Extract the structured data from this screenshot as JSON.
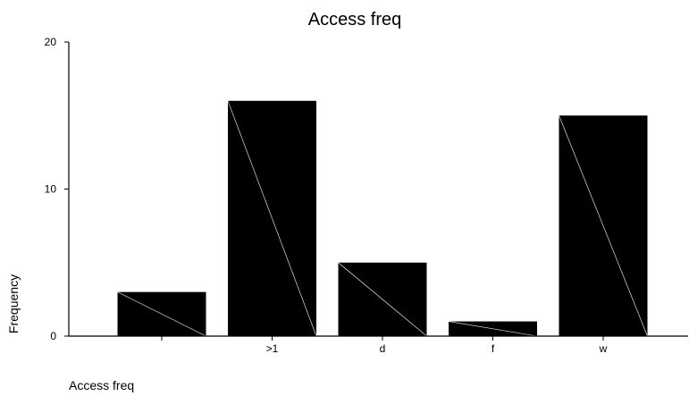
{
  "chart_data": {
    "type": "bar",
    "title": "Access freq",
    "xlabel": "Access freq",
    "ylabel": "Frequency",
    "categories": [
      "",
      ">1",
      "d",
      "f",
      "w"
    ],
    "values": [
      3,
      16,
      5,
      1,
      15
    ],
    "ylim": [
      0,
      20
    ],
    "yticks": [
      0,
      10,
      20
    ],
    "grid": false,
    "legend": "none",
    "bar_color": "#000000",
    "diagonal_color": "#ffffff"
  }
}
